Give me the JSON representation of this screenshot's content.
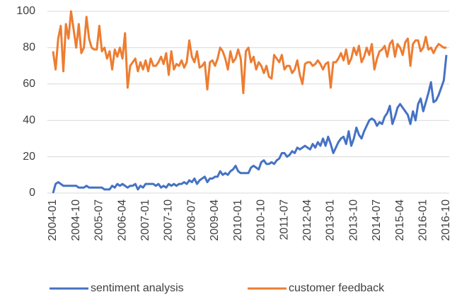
{
  "chart_data": {
    "type": "line",
    "x": [
      "2004-01",
      "2004-02",
      "2004-03",
      "2004-04",
      "2004-05",
      "2004-06",
      "2004-07",
      "2004-08",
      "2004-09",
      "2004-10",
      "2004-11",
      "2004-12",
      "2005-01",
      "2005-02",
      "2005-03",
      "2005-04",
      "2005-05",
      "2005-06",
      "2005-07",
      "2005-08",
      "2005-09",
      "2005-10",
      "2005-11",
      "2005-12",
      "2006-01",
      "2006-02",
      "2006-03",
      "2006-04",
      "2006-05",
      "2006-06",
      "2006-07",
      "2006-08",
      "2006-09",
      "2006-10",
      "2006-11",
      "2006-12",
      "2007-01",
      "2007-02",
      "2007-03",
      "2007-04",
      "2007-05",
      "2007-06",
      "2007-07",
      "2007-08",
      "2007-09",
      "2007-10",
      "2007-11",
      "2007-12",
      "2008-01",
      "2008-02",
      "2008-03",
      "2008-04",
      "2008-05",
      "2008-06",
      "2008-07",
      "2008-08",
      "2008-09",
      "2008-10",
      "2008-11",
      "2008-12",
      "2009-01",
      "2009-02",
      "2009-03",
      "2009-04",
      "2009-05",
      "2009-06",
      "2009-07",
      "2009-08",
      "2009-09",
      "2009-10",
      "2009-11",
      "2009-12",
      "2010-01",
      "2010-02",
      "2010-03",
      "2010-04",
      "2010-05",
      "2010-06",
      "2010-07",
      "2010-08",
      "2010-09",
      "2010-10",
      "2010-11",
      "2010-12",
      "2011-01",
      "2011-02",
      "2011-03",
      "2011-04",
      "2011-05",
      "2011-06",
      "2011-07",
      "2011-08",
      "2011-09",
      "2011-10",
      "2011-11",
      "2011-12",
      "2012-01",
      "2012-02",
      "2012-03",
      "2012-04",
      "2012-05",
      "2012-06",
      "2012-07",
      "2012-08",
      "2012-09",
      "2012-10",
      "2012-11",
      "2012-12",
      "2013-01",
      "2013-02",
      "2013-03",
      "2013-04",
      "2013-05",
      "2013-06",
      "2013-07",
      "2013-08",
      "2013-09",
      "2013-10",
      "2013-11",
      "2013-12",
      "2014-01",
      "2014-02",
      "2014-03",
      "2014-04",
      "2014-05",
      "2014-06",
      "2014-07",
      "2014-08",
      "2014-09",
      "2014-10",
      "2014-11",
      "2014-12",
      "2015-01",
      "2015-02",
      "2015-03",
      "2015-04",
      "2015-05",
      "2015-06",
      "2015-07",
      "2015-08",
      "2015-09",
      "2015-10",
      "2015-11",
      "2015-12",
      "2016-01",
      "2016-02",
      "2016-03",
      "2016-04",
      "2016-05",
      "2016-06",
      "2016-07",
      "2016-08",
      "2016-09",
      "2016-10"
    ],
    "xticks": [
      "2004-01",
      "2004-10",
      "2005-07",
      "2006-04",
      "2007-01",
      "2007-10",
      "2008-07",
      "2009-04",
      "2010-01",
      "2010-10",
      "2011-07",
      "2012-04",
      "2013-01",
      "2013-10",
      "2014-07",
      "2015-04",
      "2016-01",
      "2016-10"
    ],
    "ylim": [
      0,
      100
    ],
    "yticks": [
      0,
      20,
      40,
      60,
      80,
      100
    ],
    "grid": true,
    "legend": "bottom",
    "series": [
      {
        "name": "sentiment analysis",
        "color": "#4472c4",
        "values": [
          0,
          5,
          6,
          5,
          4,
          4,
          4,
          4,
          4,
          4,
          3,
          3,
          3,
          4,
          3,
          3,
          3,
          3,
          3,
          3,
          2,
          2,
          2,
          4,
          3,
          5,
          4,
          5,
          4,
          3,
          4,
          4,
          5,
          2,
          4,
          3,
          5,
          5,
          5,
          5,
          4,
          5,
          3,
          4,
          3,
          5,
          4,
          5,
          4,
          5,
          5,
          6,
          5,
          7,
          6,
          8,
          5,
          7,
          8,
          9,
          6,
          8,
          8,
          9,
          9,
          12,
          10,
          11,
          10,
          12,
          13,
          15,
          12,
          11,
          11,
          11,
          11,
          14,
          15,
          14,
          13,
          17,
          18,
          16,
          16,
          17,
          16,
          18,
          19,
          22,
          22,
          20,
          21,
          23,
          22,
          25,
          24,
          25,
          26,
          25,
          24,
          27,
          25,
          28,
          26,
          30,
          26,
          31,
          27,
          22,
          25,
          28,
          30,
          31,
          27,
          34,
          26,
          30,
          36,
          32,
          30,
          34,
          37,
          40,
          41,
          40,
          37,
          39,
          38,
          42,
          44,
          48,
          38,
          42,
          47,
          49,
          47,
          45,
          43,
          38,
          45,
          40,
          49,
          52,
          45,
          50,
          55,
          61,
          50,
          51,
          54,
          58,
          62,
          76
        ]
      },
      {
        "name": "customer feedback",
        "color": "#ed7d31",
        "values": [
          78,
          68,
          85,
          92,
          67,
          93,
          85,
          100,
          90,
          80,
          93,
          77,
          80,
          97,
          85,
          80,
          79,
          79,
          92,
          78,
          80,
          74,
          78,
          68,
          79,
          75,
          80,
          74,
          88,
          58,
          70,
          72,
          74,
          67,
          72,
          68,
          73,
          67,
          74,
          70,
          70,
          72,
          75,
          71,
          77,
          65,
          78,
          68,
          71,
          70,
          73,
          69,
          72,
          84,
          75,
          72,
          78,
          69,
          70,
          72,
          57,
          72,
          73,
          70,
          74,
          80,
          78,
          74,
          68,
          78,
          72,
          74,
          79,
          74,
          55,
          78,
          80,
          72,
          75,
          68,
          72,
          70,
          66,
          70,
          64,
          63,
          76,
          74,
          72,
          76,
          68,
          70,
          70,
          66,
          68,
          73,
          65,
          60,
          71,
          72,
          72,
          70,
          71,
          73,
          71,
          68,
          71,
          72,
          58,
          72,
          72,
          74,
          77,
          73,
          79,
          71,
          74,
          80,
          76,
          81,
          72,
          75,
          80,
          76,
          82,
          68,
          74,
          78,
          79,
          81,
          75,
          82,
          84,
          75,
          82,
          80,
          76,
          83,
          85,
          70,
          82,
          84,
          84,
          78,
          80,
          86,
          79,
          80,
          77,
          80,
          82,
          81,
          80,
          80
        ]
      }
    ]
  }
}
